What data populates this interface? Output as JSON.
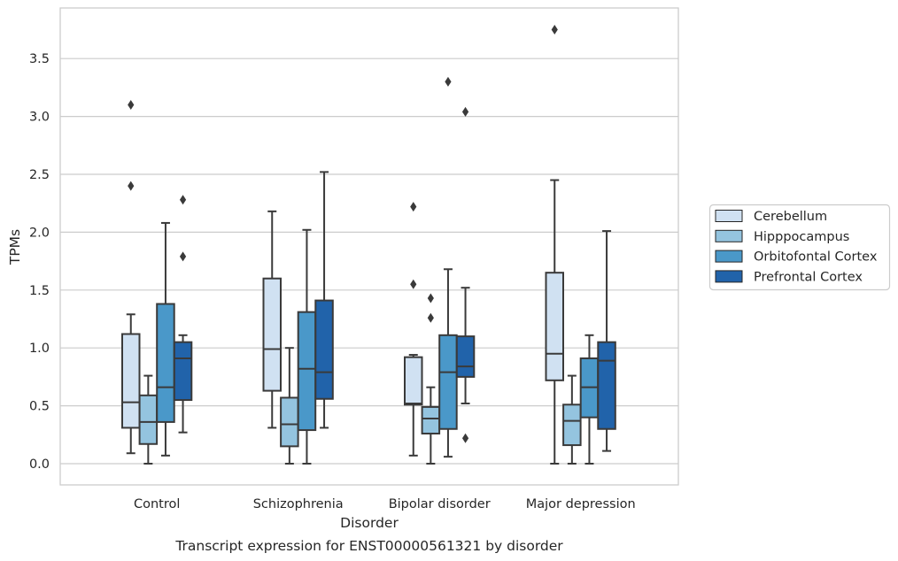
{
  "caption": "Transcript expression for ENST00000561321 by disorder",
  "chart_data": {
    "type": "box",
    "title": "",
    "xlabel": "Disorder",
    "ylabel": "TPMs",
    "ylim": [
      -0.18,
      3.95
    ],
    "yticks": [
      0.0,
      0.5,
      1.0,
      1.5,
      2.0,
      2.5,
      3.0,
      3.5
    ],
    "ytick_labels": [
      "0.0",
      "0.5",
      "1.0",
      "1.5",
      "2.0",
      "2.5",
      "3.0",
      "3.5"
    ],
    "grid": "horizontal",
    "legend_position": "right",
    "categories": [
      "Control",
      "Schizophrenia",
      "Bipolar disorder",
      "Major depression"
    ],
    "series": [
      {
        "name": "Cerebellum",
        "color": "#d0e1f2",
        "boxes": [
          {
            "whisker_low": 0.09,
            "q1": 0.31,
            "median": 0.53,
            "q3": 1.12,
            "whisker_high": 1.29,
            "outliers": [
              2.4,
              3.1
            ]
          },
          {
            "whisker_low": 0.31,
            "q1": 0.63,
            "median": 0.99,
            "q3": 1.6,
            "whisker_high": 2.18,
            "outliers": []
          },
          {
            "whisker_low": 0.07,
            "q1": 0.51,
            "median": 0.52,
            "q3": 0.92,
            "whisker_high": 0.94,
            "outliers": [
              1.55,
              2.22
            ]
          },
          {
            "whisker_low": 0.0,
            "q1": 0.72,
            "median": 0.95,
            "q3": 1.65,
            "whisker_high": 2.45,
            "outliers": [
              3.75
            ]
          }
        ]
      },
      {
        "name": "Hipppocampus",
        "color": "#94c4df",
        "boxes": [
          {
            "whisker_low": 0.0,
            "q1": 0.17,
            "median": 0.36,
            "q3": 0.59,
            "whisker_high": 0.76,
            "outliers": []
          },
          {
            "whisker_low": 0.0,
            "q1": 0.15,
            "median": 0.34,
            "q3": 0.57,
            "whisker_high": 1.0,
            "outliers": []
          },
          {
            "whisker_low": 0.0,
            "q1": 0.26,
            "median": 0.39,
            "q3": 0.49,
            "whisker_high": 0.66,
            "outliers": [
              1.26,
              1.43
            ]
          },
          {
            "whisker_low": 0.0,
            "q1": 0.16,
            "median": 0.37,
            "q3": 0.51,
            "whisker_high": 0.76,
            "outliers": []
          }
        ]
      },
      {
        "name": "Orbitofontal Cortex",
        "color": "#4a98c9",
        "boxes": [
          {
            "whisker_low": 0.07,
            "q1": 0.36,
            "median": 0.66,
            "q3": 1.38,
            "whisker_high": 2.08,
            "outliers": []
          },
          {
            "whisker_low": 0.0,
            "q1": 0.29,
            "median": 0.82,
            "q3": 1.31,
            "whisker_high": 2.02,
            "outliers": []
          },
          {
            "whisker_low": 0.06,
            "q1": 0.3,
            "median": 0.79,
            "q3": 1.11,
            "whisker_high": 1.68,
            "outliers": [
              3.3
            ]
          },
          {
            "whisker_low": 0.0,
            "q1": 0.4,
            "median": 0.66,
            "q3": 0.91,
            "whisker_high": 1.11,
            "outliers": []
          }
        ]
      },
      {
        "name": "Prefrontal Cortex",
        "color": "#2163aa",
        "boxes": [
          {
            "whisker_low": 0.27,
            "q1": 0.55,
            "median": 0.91,
            "q3": 1.05,
            "whisker_high": 1.11,
            "outliers": [
              1.79,
              2.28
            ]
          },
          {
            "whisker_low": 0.31,
            "q1": 0.56,
            "median": 0.79,
            "q3": 1.41,
            "whisker_high": 2.52,
            "outliers": []
          },
          {
            "whisker_low": 0.52,
            "q1": 0.75,
            "median": 0.84,
            "q3": 1.1,
            "whisker_high": 1.52,
            "outliers": [
              0.22,
              3.04
            ]
          },
          {
            "whisker_low": 0.11,
            "q1": 0.3,
            "median": 0.89,
            "q3": 1.05,
            "whisker_high": 2.01,
            "outliers": []
          }
        ]
      }
    ]
  }
}
